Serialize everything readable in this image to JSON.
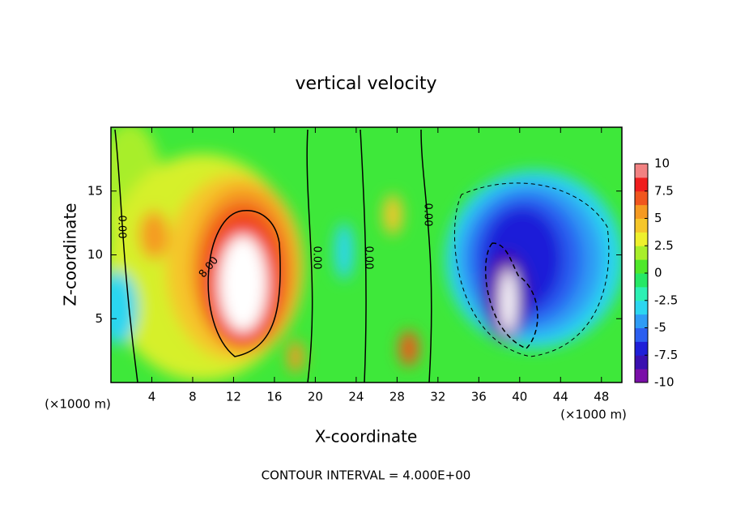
{
  "chart_data": {
    "type": "contour",
    "title": "vertical velocity",
    "x_label": "X-coordinate",
    "y_label": "Z-coordinate",
    "x_unit": "(×1000 m)",
    "footer": "CONTOUR INTERVAL = 4.000E+00",
    "xlim": [
      0,
      50
    ],
    "xticks": [
      4,
      8,
      12,
      16,
      20,
      24,
      28,
      32,
      36,
      40,
      44,
      48
    ],
    "ylim": [
      0,
      20
    ],
    "yticks": [
      5,
      10,
      15
    ],
    "contour_labels": [
      "0.00",
      "8.00",
      "0.00",
      "0.00",
      "0.00"
    ],
    "colorbar": {
      "lim": [
        -10,
        10
      ],
      "ticks": [
        10,
        7.5,
        5,
        2.5,
        0,
        -2.5,
        -5,
        -7.5,
        -10
      ],
      "colors": [
        "#7a0fa8",
        "#3a10b0",
        "#1f1fd8",
        "#2c5ff0",
        "#2f9cf5",
        "#2cd6f0",
        "#2cf0b4",
        "#26e866",
        "#4fe82a",
        "#a8ee2a",
        "#eef02c",
        "#f5c62a",
        "#f59a22",
        "#f0561e",
        "#f01e1e",
        "#f28282"
      ]
    }
  }
}
